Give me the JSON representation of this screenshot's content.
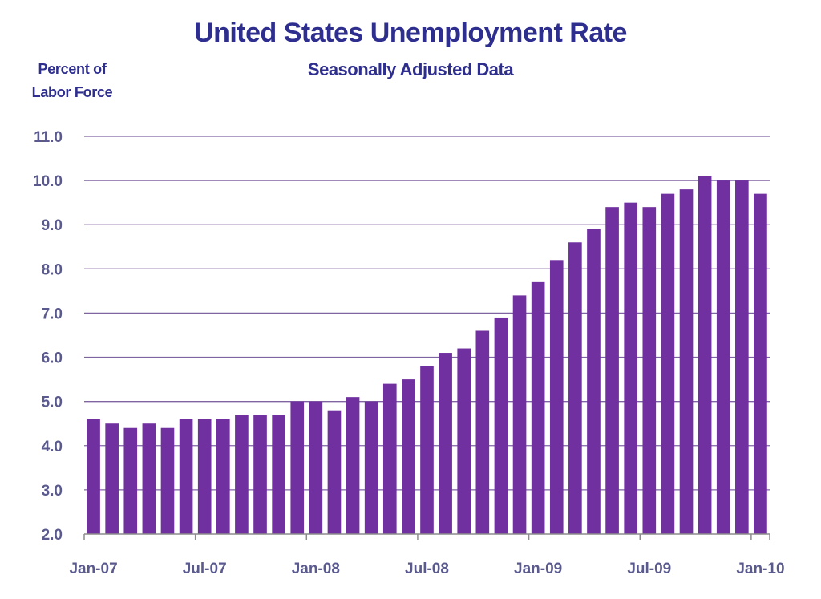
{
  "chart_data": {
    "type": "bar",
    "title": "United States Unemployment Rate",
    "subtitle": "Seasonally Adjusted Data",
    "ylabel_line1": "Percent of",
    "ylabel_line2": "Labor Force",
    "xlabel": "",
    "ylim": [
      2.0,
      11.0
    ],
    "yticks": [
      "2.0",
      "3.0",
      "4.0",
      "5.0",
      "6.0",
      "7.0",
      "8.0",
      "9.0",
      "10.0",
      "11.0"
    ],
    "grid": true,
    "bar_color": "#7030a0",
    "grid_color": "#8064a2",
    "text_color": "#2e2e8f",
    "xtick_labels": [
      {
        "index": 0,
        "label": "Jan-07"
      },
      {
        "index": 6,
        "label": "Jul-07"
      },
      {
        "index": 12,
        "label": "Jan-08"
      },
      {
        "index": 18,
        "label": "Jul-08"
      },
      {
        "index": 24,
        "label": "Jan-09"
      },
      {
        "index": 30,
        "label": "Jul-09"
      },
      {
        "index": 36,
        "label": "Jan-10"
      }
    ],
    "categories": [
      "Jan-07",
      "Feb-07",
      "Mar-07",
      "Apr-07",
      "May-07",
      "Jun-07",
      "Jul-07",
      "Aug-07",
      "Sep-07",
      "Oct-07",
      "Nov-07",
      "Dec-07",
      "Jan-08",
      "Feb-08",
      "Mar-08",
      "Apr-08",
      "May-08",
      "Jun-08",
      "Jul-08",
      "Aug-08",
      "Sep-08",
      "Oct-08",
      "Nov-08",
      "Dec-08",
      "Jan-09",
      "Feb-09",
      "Mar-09",
      "Apr-09",
      "May-09",
      "Jun-09",
      "Jul-09",
      "Aug-09",
      "Sep-09",
      "Oct-09",
      "Nov-09",
      "Dec-09",
      "Jan-10"
    ],
    "values": [
      4.6,
      4.5,
      4.4,
      4.5,
      4.4,
      4.6,
      4.6,
      4.6,
      4.7,
      4.7,
      4.7,
      5.0,
      5.0,
      4.8,
      5.1,
      5.0,
      5.4,
      5.5,
      5.8,
      6.1,
      6.2,
      6.6,
      6.9,
      7.4,
      7.7,
      8.2,
      8.6,
      8.9,
      9.4,
      9.5,
      9.4,
      9.7,
      9.8,
      10.1,
      10.0,
      10.0,
      9.7
    ]
  }
}
